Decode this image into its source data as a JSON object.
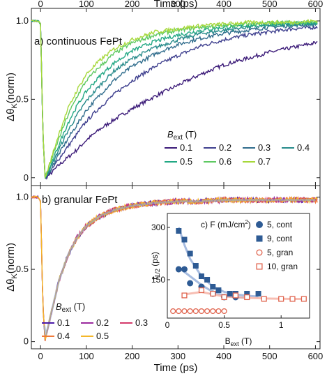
{
  "chart_data": [
    {
      "panel": "a",
      "type": "line",
      "panel_label": "a) continuous FePt",
      "x_axis_label": "Time (ps)",
      "y_axis_label_main": "Δθ",
      "y_axis_label_sub": "K",
      "y_axis_label_tail": "(norm)",
      "xlim": [
        -20,
        610
      ],
      "ylim": [
        -0.05,
        1.08
      ],
      "x_ticks": [
        0,
        100,
        200,
        300,
        400,
        500,
        600
      ],
      "y_ticks": [
        0,
        0.5,
        1.0
      ],
      "y_tick_labels": [
        "0",
        "0.5",
        "1.0"
      ],
      "legend_title_main": "B",
      "legend_title_sub": "ext",
      "legend_title_tail": " (T)",
      "series": [
        {
          "name": "0.1",
          "color": "#3b1a78",
          "x": [
            -20,
            -5,
            0,
            5,
            10,
            20,
            40,
            60,
            80,
            100,
            130,
            160,
            200,
            250,
            300,
            350,
            400,
            450,
            500,
            550,
            600
          ],
          "y": [
            1.0,
            1.0,
            0.98,
            0.3,
            0.0,
            0.02,
            0.08,
            0.13,
            0.18,
            0.24,
            0.31,
            0.37,
            0.44,
            0.52,
            0.59,
            0.66,
            0.72,
            0.76,
            0.8,
            0.83,
            0.86
          ]
        },
        {
          "name": "0.2",
          "color": "#3e3f8e",
          "x": [
            -20,
            -5,
            0,
            5,
            10,
            20,
            40,
            60,
            80,
            100,
            130,
            160,
            200,
            250,
            300,
            350,
            400,
            450,
            500,
            550,
            600
          ],
          "y": [
            1.0,
            1.0,
            0.98,
            0.3,
            0.0,
            0.03,
            0.12,
            0.2,
            0.28,
            0.36,
            0.45,
            0.53,
            0.62,
            0.71,
            0.78,
            0.84,
            0.88,
            0.91,
            0.93,
            0.95,
            0.96
          ]
        },
        {
          "name": "0.3",
          "color": "#2f6c8c",
          "x": [
            -20,
            -5,
            0,
            5,
            10,
            20,
            40,
            60,
            80,
            100,
            130,
            160,
            200,
            250,
            300,
            350,
            400,
            450,
            500,
            550,
            600
          ],
          "y": [
            1.0,
            1.0,
            0.98,
            0.3,
            0.0,
            0.04,
            0.15,
            0.25,
            0.34,
            0.43,
            0.53,
            0.62,
            0.71,
            0.79,
            0.85,
            0.89,
            0.92,
            0.94,
            0.96,
            0.97,
            0.98
          ]
        },
        {
          "name": "0.4",
          "color": "#268a8a",
          "x": [
            -20,
            -5,
            0,
            5,
            10,
            20,
            40,
            60,
            80,
            100,
            130,
            160,
            200,
            250,
            300,
            350,
            400,
            450,
            500,
            550,
            600
          ],
          "y": [
            1.0,
            1.0,
            0.98,
            0.3,
            0.0,
            0.05,
            0.18,
            0.3,
            0.4,
            0.49,
            0.59,
            0.68,
            0.76,
            0.83,
            0.88,
            0.92,
            0.94,
            0.96,
            0.97,
            0.98,
            0.98
          ]
        },
        {
          "name": "0.5",
          "color": "#22a884",
          "x": [
            -20,
            -5,
            0,
            5,
            10,
            20,
            40,
            60,
            80,
            100,
            130,
            160,
            200,
            250,
            300,
            350,
            400,
            450,
            500,
            550,
            600
          ],
          "y": [
            1.0,
            1.0,
            0.98,
            0.3,
            0.0,
            0.06,
            0.21,
            0.35,
            0.46,
            0.55,
            0.65,
            0.73,
            0.81,
            0.87,
            0.91,
            0.94,
            0.96,
            0.97,
            0.98,
            0.98,
            0.99
          ]
        },
        {
          "name": "0.6",
          "color": "#5ec962",
          "x": [
            -20,
            -5,
            0,
            5,
            10,
            20,
            40,
            60,
            80,
            100,
            130,
            160,
            200,
            250,
            300,
            350,
            400,
            450,
            500,
            550,
            600
          ],
          "y": [
            1.0,
            1.0,
            0.98,
            0.3,
            0.0,
            0.08,
            0.25,
            0.4,
            0.52,
            0.62,
            0.71,
            0.79,
            0.86,
            0.91,
            0.94,
            0.96,
            0.97,
            0.98,
            0.99,
            0.99,
            0.99
          ]
        },
        {
          "name": "0.7",
          "color": "#a6d83a",
          "x": [
            -20,
            -5,
            0,
            5,
            10,
            20,
            40,
            60,
            80,
            100,
            130,
            160,
            200,
            250,
            300,
            350,
            400,
            450,
            500,
            550,
            600
          ],
          "y": [
            1.0,
            1.0,
            0.98,
            0.3,
            0.0,
            0.09,
            0.28,
            0.44,
            0.56,
            0.66,
            0.75,
            0.82,
            0.88,
            0.93,
            0.95,
            0.97,
            0.98,
            0.99,
            0.99,
            0.99,
            1.0
          ]
        }
      ]
    },
    {
      "panel": "b",
      "type": "line",
      "panel_label": "b) granular FePt",
      "x_axis_label": "Time (ps)",
      "y_axis_label_main": "Δθ",
      "y_axis_label_sub": "K",
      "y_axis_label_tail": "(norm)",
      "xlim": [
        -20,
        610
      ],
      "ylim": [
        -0.05,
        1.08
      ],
      "x_ticks": [
        0,
        100,
        200,
        300,
        400,
        500,
        600
      ],
      "y_ticks": [
        0,
        0.5,
        1.0
      ],
      "y_tick_labels": [
        "0",
        "0.5",
        "1.0"
      ],
      "legend_title_main": "B",
      "legend_title_sub": "ext",
      "legend_title_tail": " (T)",
      "series": [
        {
          "name": "0.1",
          "color": "#4a1aa8",
          "x": [
            -20,
            -5,
            0,
            5,
            10,
            20,
            40,
            60,
            80,
            100,
            130,
            160,
            200,
            250,
            300,
            350,
            400,
            450,
            500,
            550,
            600
          ],
          "y": [
            1.0,
            1.0,
            0.97,
            0.25,
            0.02,
            0.15,
            0.42,
            0.6,
            0.72,
            0.8,
            0.87,
            0.91,
            0.94,
            0.96,
            0.97,
            0.97,
            0.98,
            0.98,
            0.98,
            0.98,
            0.98
          ]
        },
        {
          "name": "0.2",
          "color": "#9b2a9e",
          "x": [
            -20,
            -5,
            0,
            5,
            10,
            20,
            40,
            60,
            80,
            100,
            130,
            160,
            200,
            250,
            300,
            350,
            400,
            450,
            500,
            550,
            600
          ],
          "y": [
            1.0,
            1.0,
            0.97,
            0.25,
            0.02,
            0.15,
            0.42,
            0.6,
            0.72,
            0.8,
            0.87,
            0.91,
            0.94,
            0.96,
            0.97,
            0.97,
            0.98,
            0.98,
            0.98,
            0.98,
            0.98
          ]
        },
        {
          "name": "0.3",
          "color": "#d43a6a",
          "x": [
            -20,
            -5,
            0,
            5,
            10,
            20,
            40,
            60,
            80,
            100,
            130,
            160,
            200,
            250,
            300,
            350,
            400,
            450,
            500,
            550,
            600
          ],
          "y": [
            1.0,
            1.0,
            0.97,
            0.25,
            0.02,
            0.15,
            0.42,
            0.6,
            0.72,
            0.8,
            0.87,
            0.91,
            0.94,
            0.96,
            0.97,
            0.97,
            0.98,
            0.98,
            0.98,
            0.98,
            0.98
          ]
        },
        {
          "name": "0.4",
          "color": "#f07a3a",
          "x": [
            -20,
            -5,
            0,
            5,
            10,
            20,
            40,
            60,
            80,
            100,
            130,
            160,
            200,
            250,
            300,
            350,
            400,
            450,
            500,
            550,
            600
          ],
          "y": [
            1.0,
            1.0,
            0.97,
            0.25,
            0.02,
            0.15,
            0.42,
            0.6,
            0.72,
            0.8,
            0.87,
            0.91,
            0.94,
            0.96,
            0.97,
            0.97,
            0.98,
            0.98,
            0.98,
            0.98,
            0.98
          ]
        },
        {
          "name": "0.5",
          "color": "#f4b72a",
          "x": [
            -20,
            -5,
            0,
            5,
            10,
            20,
            40,
            60,
            80,
            100,
            130,
            160,
            200,
            250,
            300,
            350,
            400,
            450,
            500,
            550,
            600
          ],
          "y": [
            1.0,
            1.0,
            0.97,
            0.25,
            0.02,
            0.15,
            0.42,
            0.6,
            0.72,
            0.8,
            0.87,
            0.91,
            0.94,
            0.96,
            0.97,
            0.97,
            0.98,
            0.98,
            0.98,
            0.98,
            0.98
          ]
        }
      ],
      "fit_color": "#8aa6d6"
    },
    {
      "panel": "c",
      "type": "scatter",
      "panel_label": "c) F (mJ/cm",
      "panel_label_sup": "2",
      "panel_label_tail": ")",
      "x_axis_label_main": "B",
      "x_axis_label_sub": "ext",
      "x_axis_label_tail": " (T)",
      "y_axis_label_main": "t",
      "y_axis_label_sub": "1/2",
      "y_axis_label_tail": " (ps)",
      "xlim": [
        0,
        1.25
      ],
      "ylim": [
        40,
        340
      ],
      "x_ticks": [
        0,
        0.5,
        1
      ],
      "x_tick_labels": [
        "0",
        "0.5",
        "1"
      ],
      "y_ticks": [
        150,
        300
      ],
      "y_tick_labels": [
        "150",
        "300"
      ],
      "series": [
        {
          "name": "5, cont",
          "marker": "circle-filled",
          "color": "#2e5b94",
          "x": [
            0.1,
            0.15,
            0.2,
            0.3,
            0.4,
            0.5,
            0.6
          ],
          "y": [
            180,
            180,
            140,
            130,
            110,
            100,
            100
          ]
        },
        {
          "name": "9, cont",
          "marker": "square-filled",
          "color": "#2e5b94",
          "x": [
            0.1,
            0.15,
            0.2,
            0.25,
            0.3,
            0.35,
            0.4,
            0.45,
            0.55,
            0.6,
            0.7,
            0.8
          ],
          "y": [
            290,
            265,
            225,
            190,
            160,
            150,
            130,
            120,
            110,
            110,
            110,
            110
          ]
        },
        {
          "name": "5, gran",
          "marker": "circle-open",
          "color": "#e0644e",
          "x": [
            0.05,
            0.1,
            0.15,
            0.2,
            0.25,
            0.3,
            0.35,
            0.4,
            0.45,
            0.5
          ],
          "y": [
            60,
            60,
            60,
            60,
            60,
            60,
            60,
            60,
            60,
            60
          ]
        },
        {
          "name": "10, gran",
          "marker": "square-open",
          "color": "#e0644e",
          "x": [
            0.15,
            0.3,
            0.4,
            0.5,
            0.6,
            0.7,
            0.85,
            1.0,
            1.1,
            1.2
          ],
          "y": [
            105,
            120,
            110,
            100,
            105,
            100,
            95,
            95,
            95,
            95
          ]
        }
      ],
      "fit_lines": [
        {
          "color": "#8aa6d6",
          "x": [
            0.1,
            0.15,
            0.2,
            0.3,
            0.4,
            0.5,
            0.6,
            0.7,
            0.8
          ],
          "y": [
            300,
            250,
            210,
            160,
            130,
            115,
            108,
            104,
            102
          ]
        },
        {
          "color": "#8aa6d6",
          "x": [
            0.1,
            0.2,
            0.3,
            0.4,
            0.5,
            0.6,
            0.7
          ],
          "y": [
            185,
            160,
            135,
            115,
            105,
            100,
            98
          ]
        },
        {
          "color": "#f4a89a",
          "x": [
            0.15,
            0.3,
            0.4,
            0.5,
            0.7,
            0.9,
            1.1,
            1.22
          ],
          "y": [
            108,
            115,
            108,
            102,
            98,
            96,
            95,
            95
          ]
        },
        {
          "color": "#f4a89a",
          "x": [
            0.03,
            0.1,
            0.2,
            0.3,
            0.4,
            0.5,
            0.52
          ],
          "y": [
            60,
            60,
            61,
            62,
            62,
            61,
            61
          ]
        }
      ]
    }
  ]
}
